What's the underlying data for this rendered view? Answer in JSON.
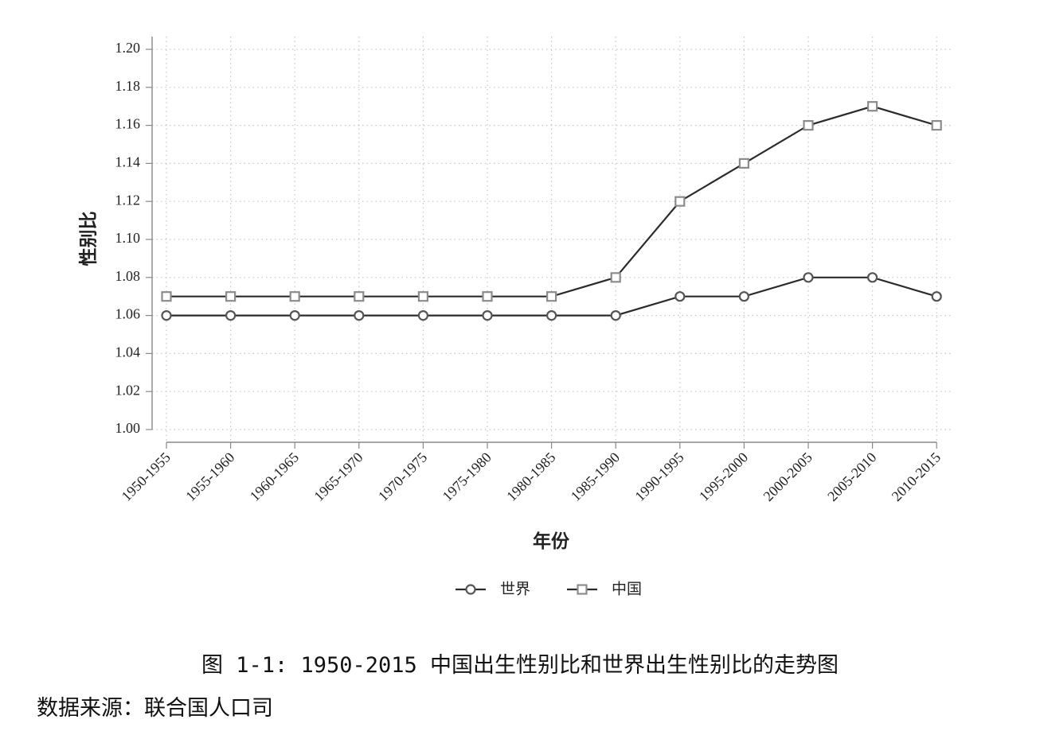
{
  "chart_data": {
    "type": "line",
    "title": "",
    "xlabel": "年份",
    "ylabel": "性别比",
    "categories": [
      "1950-1955",
      "1955-1960",
      "1960-1965",
      "1965-1970",
      "1970-1975",
      "1975-1980",
      "1980-1985",
      "1985-1990",
      "1990-1995",
      "1995-2000",
      "2000-2005",
      "2005-2010",
      "2010-2015"
    ],
    "ylim": [
      1.0,
      1.2
    ],
    "yticks": [
      "1.00",
      "1.02",
      "1.04",
      "1.06",
      "1.08",
      "1.10",
      "1.12",
      "1.14",
      "1.16",
      "1.18",
      "1.20"
    ],
    "grid": true,
    "legend_position": "bottom",
    "series": [
      {
        "name": "世界",
        "marker": "circle",
        "color": "#2b2b2b",
        "marker_color": "#555555",
        "values": [
          1.06,
          1.06,
          1.06,
          1.06,
          1.06,
          1.06,
          1.06,
          1.06,
          1.07,
          1.07,
          1.08,
          1.08,
          1.07
        ]
      },
      {
        "name": "中国",
        "marker": "square",
        "color": "#2b2b2b",
        "marker_color": "#8c8c8c",
        "values": [
          1.07,
          1.07,
          1.07,
          1.07,
          1.07,
          1.07,
          1.07,
          1.08,
          1.12,
          1.14,
          1.16,
          1.17,
          1.16
        ]
      }
    ]
  },
  "caption": "图 1-1: 1950-2015 中国出生性别比和世界出生性别比的走势图",
  "source": "数据来源：联合国人口司"
}
